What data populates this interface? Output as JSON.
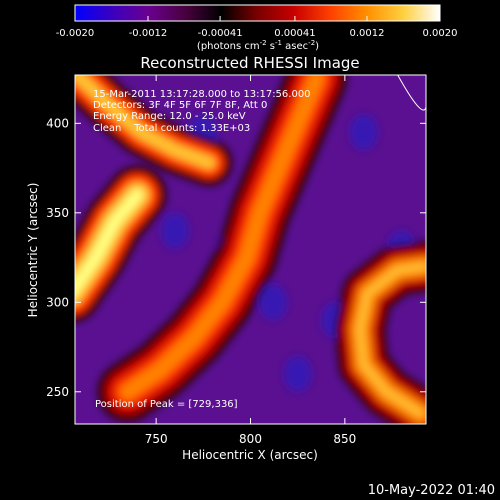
{
  "chart_data": {
    "type": "heatmap",
    "title": "Reconstructed RHESSI Image",
    "xlabel": "Heliocentric X (arcsec)",
    "ylabel": "Heliocentric Y (arcsec)",
    "xlim": [
      707,
      893
    ],
    "ylim": [
      232,
      427
    ],
    "x_ticks": [
      750,
      800,
      850
    ],
    "x_tick_labels": [
      "750",
      "800",
      "850"
    ],
    "y_ticks": [
      250,
      300,
      350,
      400
    ],
    "y_tick_labels": [
      "250",
      "300",
      "350",
      "400"
    ],
    "colorbar": {
      "range": [
        -0.002,
        0.002
      ],
      "ticks": [
        -0.002,
        -0.0012,
        -0.00041,
        0.00041,
        0.0012,
        0.002
      ],
      "tick_labels": [
        "-0.0020",
        "-0.0012",
        "-0.00041",
        "0.00041",
        "0.0012",
        "0.0020"
      ],
      "unit_label_parts": [
        "(photons cm",
        "-2",
        " s",
        "-1",
        " asec",
        "-2",
        ")"
      ],
      "colormap_stops": [
        "#0000ff",
        "#3a00c0",
        "#6a0090",
        "#4a0040",
        "#000000",
        "#7a0000",
        "#c80000",
        "#ff4000",
        "#ff9000",
        "#ffd040",
        "#ffffff"
      ]
    },
    "info_lines": [
      "15-Mar-2011 13:17:28.000 to 13:17:56.000",
      "Detectors: 3F 4F 5F 6F 7F 8F, Att 0",
      "Energy Range: 12.0 - 25.0 keV",
      "Clean    Total counts: 1.33E+03"
    ],
    "peak_label": "Position of Peak = [729,336]",
    "peak_position": [
      729,
      336
    ],
    "features": [
      {
        "name": "left-bright-source",
        "x_range": [
          707,
          760
        ],
        "y_range": [
          305,
          365
        ],
        "level": "high"
      },
      {
        "name": "upper-arc",
        "x_range": [
          707,
          793
        ],
        "y_range": [
          360,
          427
        ],
        "level": "high"
      },
      {
        "name": "central-loop",
        "x_range": [
          748,
          840
        ],
        "y_range": [
          260,
          420
        ],
        "level": "high"
      },
      {
        "name": "right-arc",
        "x_range": [
          838,
          893
        ],
        "y_range": [
          232,
          320
        ],
        "level": "high"
      },
      {
        "name": "background",
        "level": "low"
      }
    ],
    "limb_curve_points": [
      [
        878,
        427
      ],
      [
        893,
        409
      ]
    ],
    "grid": false
  },
  "footer": {
    "date": "10-May-2022 01:40"
  }
}
